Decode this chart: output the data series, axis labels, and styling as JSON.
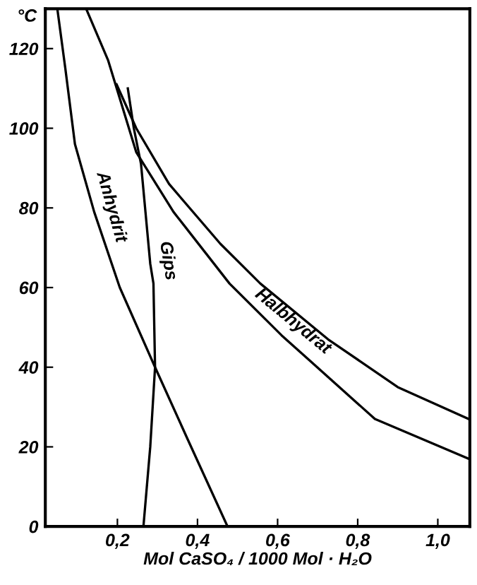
{
  "chart_data": {
    "type": "line",
    "xlabel": "Mol CaSO₄ / 1000 Mol · H₂O",
    "ylabel": "°C",
    "xlim": [
      0.02,
      1.08
    ],
    "ylim": [
      0,
      130
    ],
    "xticks": [
      {
        "value": 0.2,
        "label": "0,2"
      },
      {
        "value": 0.4,
        "label": "0,4"
      },
      {
        "value": 0.6,
        "label": "0,6"
      },
      {
        "value": 0.8,
        "label": "0,8"
      },
      {
        "value": 1.0,
        "label": "1,0"
      }
    ],
    "yticks": [
      0,
      20,
      40,
      60,
      80,
      100,
      120
    ],
    "grid": false,
    "legend": false,
    "marker": "none",
    "line_style": "solid",
    "series": [
      {
        "color": "#000000",
        "x": [
          0.05,
          0.07,
          0.094,
          0.142,
          0.206,
          0.294,
          0.375,
          0.475
        ],
        "values": [
          130,
          115,
          96,
          79,
          60,
          40,
          22,
          0
        ]
      },
      {
        "color": "#000000",
        "x": [
          0.265,
          0.282,
          0.294,
          0.29,
          0.282,
          0.259,
          0.241,
          0.226
        ],
        "values": [
          0,
          20,
          40,
          61,
          66,
          91,
          100,
          110
        ]
      },
      {
        "color": "#000000",
        "x": [
          0.122,
          0.177,
          0.247,
          0.34,
          0.48,
          0.61,
          0.843,
          1.077
        ],
        "values": [
          130,
          117,
          94,
          79,
          61,
          48,
          27,
          17
        ]
      },
      {
        "color": "#000000",
        "x": [
          0.198,
          0.247,
          0.329,
          0.457,
          0.557,
          0.726,
          0.9,
          1.077
        ],
        "values": [
          111,
          100,
          86,
          71,
          61,
          47,
          35,
          27
        ]
      }
    ],
    "annotations": [
      {
        "text": "Anhydrit",
        "x": 0.142,
        "y": 79
      },
      {
        "text": "Gips",
        "x": 0.282,
        "y": 66
      },
      {
        "text": "Halbhydrat",
        "x": 0.61,
        "y": 48
      }
    ]
  }
}
